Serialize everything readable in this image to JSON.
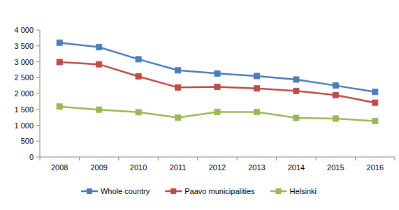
{
  "chart_data": {
    "type": "line",
    "categories": [
      "2008",
      "2009",
      "2010",
      "2011",
      "2012",
      "2013",
      "2014",
      "2015",
      "2016"
    ],
    "series": [
      {
        "name": "Whole country",
        "color": "#4a7ebb",
        "marker": "square",
        "values": [
          3600,
          3460,
          3080,
          2730,
          2630,
          2550,
          2440,
          2250,
          2050
        ]
      },
      {
        "name": "Paavo municipalities",
        "color": "#be4b48",
        "marker": "square",
        "values": [
          2990,
          2920,
          2540,
          2190,
          2210,
          2160,
          2080,
          1950,
          1710
        ]
      },
      {
        "name": "Helsinki",
        "color": "#98b954",
        "marker": "square",
        "values": [
          1590,
          1490,
          1410,
          1240,
          1420,
          1420,
          1230,
          1210,
          1130
        ]
      }
    ],
    "ylim": [
      0,
      4000
    ],
    "yticks": [
      0,
      500,
      {
        "value": 1000,
        "label": "1 000"
      },
      {
        "value": 1500,
        "label": "1 500"
      },
      {
        "value": 2000,
        "label": "2 000"
      },
      {
        "value": 2500,
        "label": "2 500"
      },
      {
        "value": 3000,
        "label": "3 000"
      },
      {
        "value": 3500,
        "label": "3 500"
      },
      {
        "value": 4000,
        "label": "4 000"
      }
    ],
    "grid": false,
    "legend": "bottom"
  }
}
